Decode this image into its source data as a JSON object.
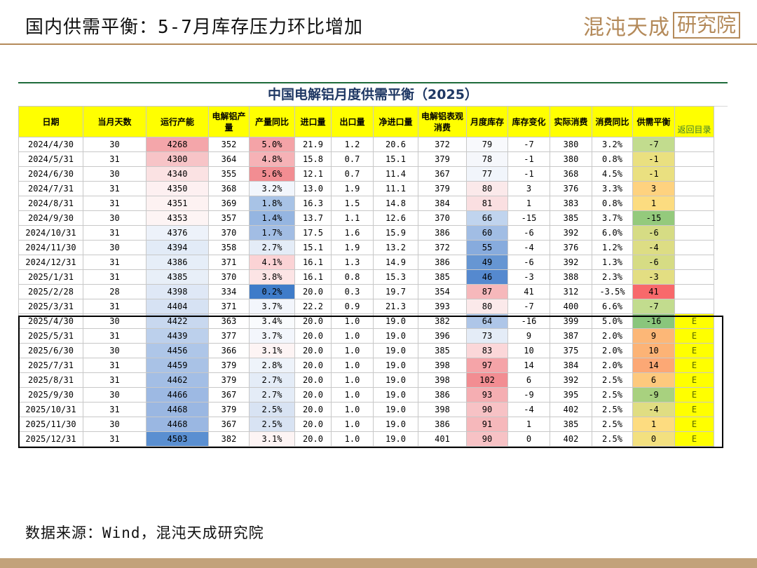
{
  "page": {
    "title": "国内供需平衡：5-7月库存压力环比增加",
    "logo_text": "混沌天成",
    "logo_box_text": "研究院",
    "source": "数据来源：Wind，混沌天成研究院"
  },
  "table": {
    "title": "中国电解铝月度供需平衡（2025）",
    "headers": [
      "日期",
      "当月天数",
      "运行产能",
      "电解铝产量",
      "产量同比",
      "进口量",
      "出口量",
      "净进口量",
      "电解铝表观消费",
      "月度库存",
      "库存变化",
      "实际消费",
      "消费同比",
      "供需平衡",
      "返回目录"
    ],
    "rows": [
      [
        "2024/4/30",
        "30",
        "4268",
        "352",
        "5.0%",
        "21.9",
        "1.2",
        "20.6",
        "372",
        "79",
        "-7",
        "380",
        "3.2%",
        "-7",
        ""
      ],
      [
        "2024/5/31",
        "31",
        "4300",
        "364",
        "4.8%",
        "15.8",
        "0.7",
        "15.1",
        "379",
        "78",
        "-1",
        "380",
        "0.8%",
        "-1",
        ""
      ],
      [
        "2024/6/30",
        "30",
        "4340",
        "355",
        "5.6%",
        "12.1",
        "0.7",
        "11.4",
        "367",
        "77",
        "-1",
        "368",
        "4.5%",
        "-1",
        ""
      ],
      [
        "2024/7/31",
        "31",
        "4350",
        "368",
        "3.2%",
        "13.0",
        "1.9",
        "11.1",
        "379",
        "80",
        "3",
        "376",
        "3.3%",
        "3",
        ""
      ],
      [
        "2024/8/31",
        "31",
        "4351",
        "369",
        "1.8%",
        "16.3",
        "1.5",
        "14.8",
        "384",
        "81",
        "1",
        "383",
        "0.8%",
        "1",
        ""
      ],
      [
        "2024/9/30",
        "30",
        "4353",
        "357",
        "1.4%",
        "13.7",
        "1.1",
        "12.6",
        "370",
        "66",
        "-15",
        "385",
        "3.7%",
        "-15",
        ""
      ],
      [
        "2024/10/31",
        "31",
        "4376",
        "370",
        "1.7%",
        "17.5",
        "1.6",
        "15.9",
        "386",
        "60",
        "-6",
        "392",
        "6.0%",
        "-6",
        ""
      ],
      [
        "2024/11/30",
        "30",
        "4394",
        "358",
        "2.7%",
        "15.1",
        "1.9",
        "13.2",
        "372",
        "55",
        "-4",
        "376",
        "1.2%",
        "-4",
        ""
      ],
      [
        "2024/12/31",
        "31",
        "4386",
        "371",
        "4.1%",
        "16.1",
        "1.3",
        "14.9",
        "386",
        "49",
        "-6",
        "392",
        "1.3%",
        "-6",
        ""
      ],
      [
        "2025/1/31",
        "31",
        "4385",
        "370",
        "3.8%",
        "16.1",
        "0.8",
        "15.3",
        "385",
        "46",
        "-3",
        "388",
        "2.3%",
        "-3",
        ""
      ],
      [
        "2025/2/28",
        "28",
        "4398",
        "334",
        "0.2%",
        "20.0",
        "0.3",
        "19.7",
        "354",
        "87",
        "41",
        "312",
        "-3.5%",
        "41",
        ""
      ],
      [
        "2025/3/31",
        "31",
        "4404",
        "371",
        "3.7%",
        "22.2",
        "0.9",
        "21.3",
        "393",
        "80",
        "-7",
        "400",
        "6.6%",
        "-7",
        ""
      ],
      [
        "2025/4/30",
        "30",
        "4422",
        "363",
        "3.4%",
        "20.0",
        "1.0",
        "19.0",
        "382",
        "64",
        "-16",
        "399",
        "5.0%",
        "-16",
        "E"
      ],
      [
        "2025/5/31",
        "31",
        "4439",
        "377",
        "3.7%",
        "20.0",
        "1.0",
        "19.0",
        "396",
        "73",
        "9",
        "387",
        "2.0%",
        "9",
        "E"
      ],
      [
        "2025/6/30",
        "30",
        "4456",
        "366",
        "3.1%",
        "20.0",
        "1.0",
        "19.0",
        "385",
        "83",
        "10",
        "375",
        "2.0%",
        "10",
        "E"
      ],
      [
        "2025/7/31",
        "31",
        "4459",
        "379",
        "2.8%",
        "20.0",
        "1.0",
        "19.0",
        "398",
        "97",
        "14",
        "384",
        "2.0%",
        "14",
        "E"
      ],
      [
        "2025/8/31",
        "31",
        "4462",
        "379",
        "2.7%",
        "20.0",
        "1.0",
        "19.0",
        "398",
        "102",
        "6",
        "392",
        "2.5%",
        "6",
        "E"
      ],
      [
        "2025/9/30",
        "30",
        "4466",
        "367",
        "2.7%",
        "20.0",
        "1.0",
        "19.0",
        "386",
        "93",
        "-9",
        "395",
        "2.5%",
        "-9",
        "E"
      ],
      [
        "2025/10/31",
        "31",
        "4468",
        "379",
        "2.5%",
        "20.0",
        "1.0",
        "19.0",
        "398",
        "90",
        "-4",
        "402",
        "2.5%",
        "-4",
        "E"
      ],
      [
        "2025/11/30",
        "30",
        "4468",
        "367",
        "2.5%",
        "20.0",
        "1.0",
        "19.0",
        "386",
        "91",
        "1",
        "385",
        "2.5%",
        "1",
        "E"
      ],
      [
        "2025/12/31",
        "31",
        "4503",
        "382",
        "3.1%",
        "20.0",
        "1.0",
        "19.0",
        "401",
        "90",
        "0",
        "402",
        "2.5%",
        "0",
        "E"
      ]
    ],
    "cell_colors": {
      "capacity": [
        "#f4a6aa",
        "#f7c4c7",
        "#fbe2e3",
        "#fdf0f1",
        "#fdf2f2",
        "#fdf4f4",
        "#edf2fa",
        "#e2ebf7",
        "#e6eef8",
        "#e8eff8",
        "#dfe8f6",
        "#d6e2f3",
        "#c8d8ef",
        "#bcd0ec",
        "#aec6e8",
        "#a9c2e6",
        "#a3bee5",
        "#9db9e3",
        "#9ab7e2",
        "#9ab7e2",
        "#5a8fd1"
      ],
      "prod_yoy": [
        "#f4a3a7",
        "#f6b2b6",
        "#f28d92",
        "#f2f6fc",
        "#a8c3e6",
        "#95b5e1",
        "#a2bde4",
        "#e4ecf7",
        "#fbd3d5",
        "#fce4e5",
        "#3f7cc9",
        "#f3f6fc",
        "#f9fbfd",
        "#f3f6fc",
        "#fdf4f4",
        "#eef3fa",
        "#e4ecf7",
        "#e4ecf7",
        "#d8e3f3",
        "#d8e3f3",
        "#fdf4f4"
      ],
      "inventory": [
        "#f8f9fc",
        "#f5f7fb",
        "#f1f5fb",
        "#fbe9ea",
        "#fadfe1",
        "#c0d4ee",
        "#a1bde4",
        "#87abdd",
        "#6696d3",
        "#5589cf",
        "#f6b8bb",
        "#fbe9ea",
        "#aec6e8",
        "#e4ecf7",
        "#fbd7d9",
        "#f5a4a8",
        "#f28d92",
        "#f5aeb2",
        "#f7c2c5",
        "#f6b8bb",
        "#f7c2c5"
      ],
      "balance": [
        "#c2dc8e",
        "#eae080",
        "#eae080",
        "#fed27f",
        "#fcdc80",
        "#94ca7c",
        "#d6dc84",
        "#dddd84",
        "#d6dc84",
        "#e3de82",
        "#f8696b",
        "#c2dc8e",
        "#8ac67c",
        "#fcb777",
        "#fcb376",
        "#fca875",
        "#fdc97d",
        "#a8d17f",
        "#e0dd82",
        "#fddc80",
        "#f3e07f"
      ]
    }
  }
}
